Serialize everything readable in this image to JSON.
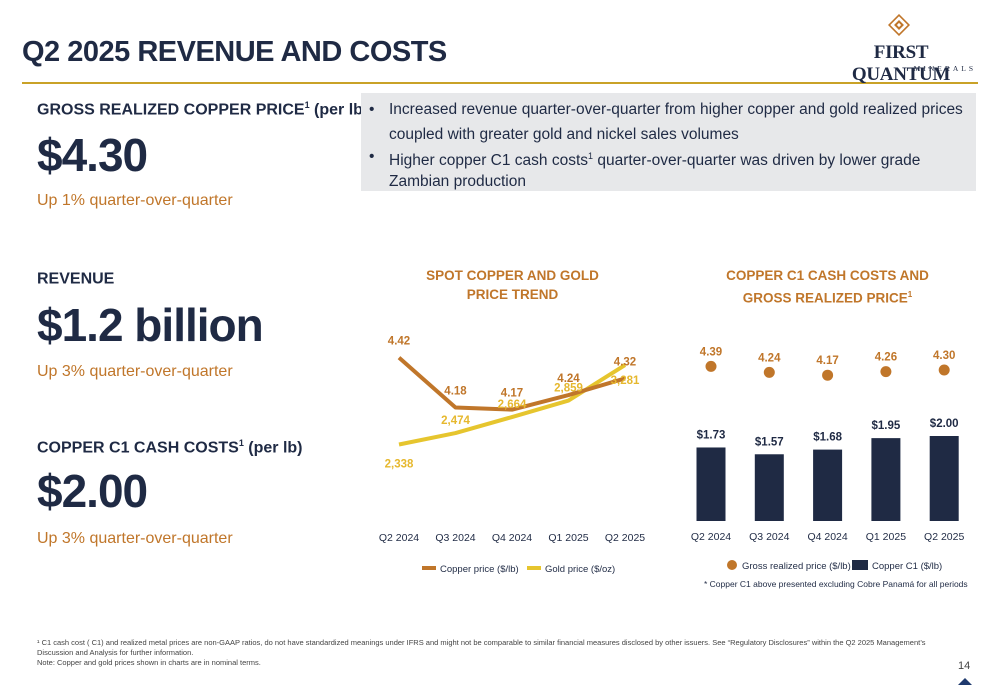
{
  "page": {
    "title": "Q2 2025 REVENUE AND COSTS",
    "page_number": "14"
  },
  "logo": {
    "name": "FIRST QUANTUM",
    "sub": "MINERALS"
  },
  "metrics": [
    {
      "label": "GROSS REALIZED COPPER PRICE",
      "sup": "1",
      "unit": " (per lb)",
      "value": "$4.30",
      "change": "Up 1% quarter-over-quarter"
    },
    {
      "label": "REVENUE",
      "sup": "",
      "unit": "",
      "value": "$1.2 billion",
      "change": "Up 3% quarter-over-quarter"
    },
    {
      "label": "COPPER C1 CASH COSTS",
      "sup": "1",
      "unit": " (per lb)",
      "value": "$2.00",
      "change": "Up 3% quarter-over-quarter"
    }
  ],
  "bullets": [
    {
      "pre": "Increased revenue quarter-over-quarter from higher copper and gold realized prices coupled with greater gold and nickel sales volumes",
      "sup": "",
      "post": ""
    },
    {
      "pre": "Higher copper C1 cash costs",
      "sup": "1",
      "post": " quarter-over-quarter was driven by lower grade Zambian production"
    }
  ],
  "colors": {
    "navy": "#1f2a44",
    "copper": "#c0762a",
    "gold": "#e6c52e",
    "gold_rule": "#c9a227",
    "panel": "#e7e8ea"
  },
  "chart_data": [
    {
      "type": "line",
      "title_line1": "SPOT COPPER AND GOLD",
      "title_line2": "PRICE TREND",
      "categories": [
        "Q2 2024",
        "Q3 2024",
        "Q4 2024",
        "Q1 2025",
        "Q2 2025"
      ],
      "series": [
        {
          "name": "Copper price ($/lb)",
          "values": [
            4.42,
            4.18,
            4.17,
            4.24,
            4.32
          ],
          "labels": [
            "4.42",
            "4.18",
            "4.17",
            "4.24",
            "4.32"
          ],
          "color": "#c0762a"
        },
        {
          "name": "Gold price ($/oz)",
          "values": [
            2338,
            2474,
            2664,
            2859,
            3281
          ],
          "labels": [
            "2,338",
            "2,474",
            "2,664",
            "2,859",
            "3,281"
          ],
          "color": "#e6c52e"
        }
      ],
      "legend_position": "bottom",
      "grid": false
    },
    {
      "type": "bar",
      "title_line1": "COPPER C1 CASH COSTS AND",
      "title_line2": "GROSS REALIZED PRICE",
      "title_sup": "1",
      "categories": [
        "Q2 2024",
        "Q3 2024",
        "Q4 2024",
        "Q1 2025",
        "Q2 2025"
      ],
      "series": [
        {
          "name": "Copper C1 ($/lb)",
          "values": [
            1.73,
            1.57,
            1.68,
            1.95,
            2.0
          ],
          "labels": [
            "$1.73",
            "$1.57",
            "$1.68",
            "$1.95",
            "$2.00"
          ],
          "color": "#1f2a44",
          "kind": "bar"
        },
        {
          "name": "Gross realized price ($/lb)",
          "values": [
            4.39,
            4.24,
            4.17,
            4.26,
            4.3
          ],
          "labels": [
            "4.39",
            "4.24",
            "4.17",
            "4.26",
            "4.30"
          ],
          "color": "#c0762a",
          "kind": "dot"
        }
      ],
      "legend_position": "bottom",
      "grid": false,
      "note": "* Copper C1 above presented excluding Cobre Panamá for all periods"
    }
  ],
  "footnote": {
    "line1": "¹ C1 cash cost ( C1) and realized metal prices are non-GAAP ratios, do not have standardized meanings under IFRS and might not be comparable to similar financial measures disclosed by other issuers.  See “Regulatory Disclosures” within the Q2 2025 Management’s Discussion and Analysis for further information.",
    "line2": "Note: Copper and gold prices shown in charts are in nominal terms."
  }
}
